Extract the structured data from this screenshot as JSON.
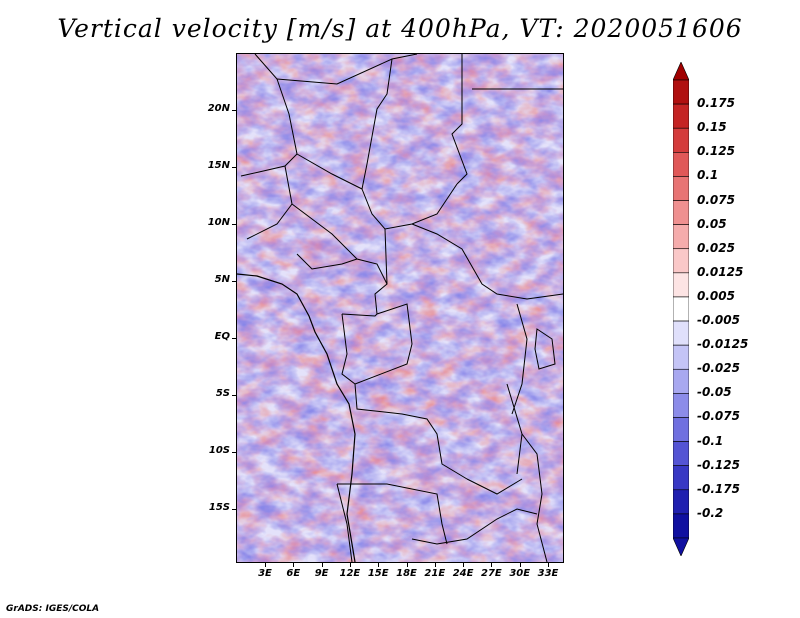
{
  "title": "Vertical velocity [m/s] at 400hPa, VT: 2020051606",
  "credit": "GrADS: IGES/COLA",
  "map": {
    "lat_labels": [
      "20N",
      "15N",
      "10N",
      "5N",
      "EQ",
      "5S",
      "10S",
      "15S"
    ],
    "lon_labels": [
      "3E",
      "6E",
      "9E",
      "12E",
      "15E",
      "18E",
      "21E",
      "24E",
      "27E",
      "30E",
      "33E"
    ],
    "field": "vertical velocity",
    "level": "400hPa",
    "valid_time": "2020051606"
  },
  "colorbar": {
    "labels": [
      "0.175",
      "0.15",
      "0.125",
      "0.1",
      "0.075",
      "0.05",
      "0.025",
      "0.0125",
      "0.005",
      "-0.005",
      "-0.0125",
      "-0.025",
      "-0.05",
      "-0.075",
      "-0.1",
      "-0.125",
      "-0.175",
      "-0.2"
    ],
    "colors": [
      "#b01010",
      "#c42424",
      "#d43c3c",
      "#e05858",
      "#e87474",
      "#ef9090",
      "#f5acac",
      "#fac8c8",
      "#fde4e4",
      "#ffffff",
      "#e0e0fb",
      "#c4c4f6",
      "#a8a8f0",
      "#8c8ce9",
      "#7070e0",
      "#5454d4",
      "#3838c4",
      "#2020b0",
      "#1010a0"
    ],
    "arrow_top_color": "#a00000",
    "arrow_bottom_color": "#1010a0"
  }
}
